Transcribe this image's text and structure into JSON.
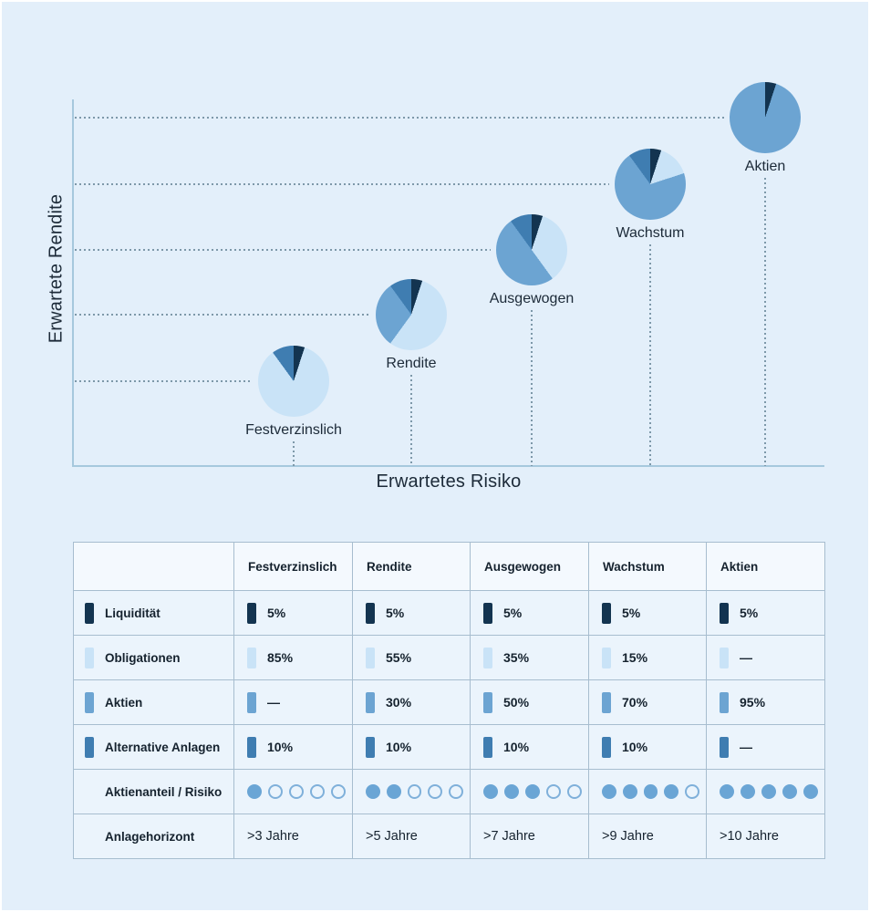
{
  "chart_data": {
    "type": "pie",
    "title": "",
    "xlabel": "Erwartetes Risiko",
    "ylabel": "Erwartete Rendite",
    "legend_position": "table-below",
    "grid": "dotted-guides",
    "segments": [
      "Liquidität",
      "Obligationen",
      "Aktien",
      "Alternative Anlagen"
    ],
    "portfolios": [
      {
        "name": "Festverzinslich",
        "risk_rank": 1,
        "return_rank": 1,
        "values": [
          5,
          85,
          0,
          10
        ]
      },
      {
        "name": "Rendite",
        "risk_rank": 2,
        "return_rank": 2,
        "values": [
          5,
          55,
          30,
          10
        ]
      },
      {
        "name": "Ausgewogen",
        "risk_rank": 3,
        "return_rank": 3,
        "values": [
          5,
          35,
          50,
          10
        ]
      },
      {
        "name": "Wachstum",
        "risk_rank": 4,
        "return_rank": 4,
        "values": [
          5,
          15,
          70,
          10
        ]
      },
      {
        "name": "Aktien",
        "risk_rank": 5,
        "return_rank": 5,
        "values": [
          5,
          0,
          95,
          0
        ]
      }
    ]
  },
  "colors": {
    "liquiditaet": "#133450",
    "obligationen": "#c9e3f7",
    "aktien": "#6ca4d2",
    "alternative": "#3f7db1",
    "risk_dot_filled": "#6aa5d5",
    "risk_dot_empty": "#7fb0da",
    "axis": "#a6c8dd",
    "dotted_guide": "#7d98a9"
  },
  "table": {
    "corner_label": "",
    "columns": [
      "Festverzinslich",
      "Rendite",
      "Ausgewogen",
      "Wachstum",
      "Aktien"
    ],
    "rows": [
      {
        "id": "liquiditaet",
        "label": "Liquidität",
        "type": "alloc",
        "color_key": "liquiditaet",
        "values": [
          "5%",
          "5%",
          "5%",
          "5%",
          "5%"
        ]
      },
      {
        "id": "obligationen",
        "label": "Obligationen",
        "type": "alloc",
        "color_key": "obligationen",
        "values": [
          "85%",
          "55%",
          "35%",
          "15%",
          "—"
        ]
      },
      {
        "id": "aktien",
        "label": "Aktien",
        "type": "alloc",
        "color_key": "aktien",
        "values": [
          "—",
          "30%",
          "50%",
          "70%",
          "95%"
        ]
      },
      {
        "id": "alternative-anlagen",
        "label": "Alternative Anlagen",
        "type": "alloc",
        "color_key": "alternative",
        "values": [
          "10%",
          "10%",
          "10%",
          "10%",
          "—"
        ]
      },
      {
        "id": "aktienanteil-risiko",
        "label": "Aktienanteil / Risiko",
        "type": "dots",
        "max": 5,
        "values": [
          1,
          2,
          3,
          4,
          5
        ]
      },
      {
        "id": "anlagehorizont",
        "label": "Anlagehorizont",
        "type": "text",
        "values": [
          ">3 Jahre",
          ">5 Jahre",
          ">7 Jahre",
          ">9 Jahre",
          ">10 Jahre"
        ]
      }
    ]
  }
}
